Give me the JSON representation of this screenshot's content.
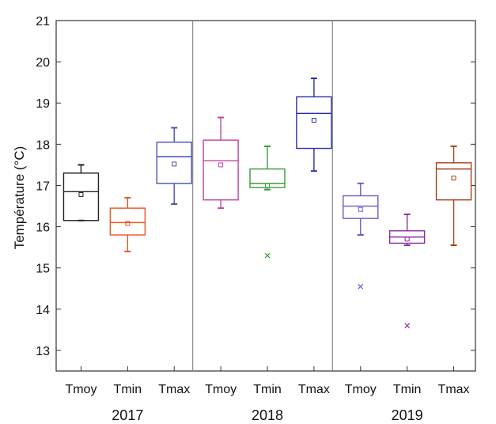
{
  "chart_data": {
    "type": "box",
    "ylabel": "Température (°C)",
    "xlabel": "",
    "ylim": [
      12.5,
      21
    ],
    "yticks": [
      13,
      14,
      15,
      16,
      17,
      18,
      19,
      20,
      21
    ],
    "grid": false,
    "legend": "none",
    "groups": [
      {
        "label": "2017",
        "boxes": [
          {
            "label": "Tmoy",
            "color": "#222222",
            "min": 16.15,
            "q1": 16.15,
            "median": 16.85,
            "q3": 17.3,
            "max": 17.5,
            "mean": 16.78,
            "outliers": []
          },
          {
            "label": "Tmin",
            "color": "#e8542a",
            "min": 15.4,
            "q1": 15.8,
            "median": 16.1,
            "q3": 16.45,
            "max": 16.7,
            "mean": 16.08,
            "outliers": []
          },
          {
            "label": "Tmax",
            "color": "#4a4fb0",
            "min": 16.55,
            "q1": 17.05,
            "median": 17.7,
            "q3": 18.05,
            "max": 18.4,
            "mean": 17.52,
            "outliers": []
          }
        ]
      },
      {
        "label": "2018",
        "boxes": [
          {
            "label": "Tmoy",
            "color": "#c0459a",
            "min": 16.45,
            "q1": 16.65,
            "median": 17.6,
            "q3": 18.1,
            "max": 18.65,
            "mean": 17.5,
            "outliers": []
          },
          {
            "label": "Tmin",
            "color": "#3a9a3a",
            "min": 16.9,
            "q1": 16.95,
            "median": 17.05,
            "q3": 17.4,
            "max": 17.95,
            "mean": 17.0,
            "outliers": [
              15.3
            ]
          },
          {
            "label": "Tmax",
            "color": "#2a2ea8",
            "min": 17.35,
            "q1": 17.9,
            "median": 18.75,
            "q3": 19.15,
            "max": 19.6,
            "mean": 18.58,
            "outliers": []
          }
        ]
      },
      {
        "label": "2019",
        "boxes": [
          {
            "label": "Tmoy",
            "color": "#6a5bc8",
            "min": 15.8,
            "q1": 16.2,
            "median": 16.5,
            "q3": 16.75,
            "max": 17.05,
            "mean": 16.42,
            "outliers": [
              14.55
            ]
          },
          {
            "label": "Tmin",
            "color": "#8a2ea0",
            "min": 15.55,
            "q1": 15.6,
            "median": 15.75,
            "q3": 15.9,
            "max": 16.3,
            "mean": 15.7,
            "outliers": [
              13.6
            ]
          },
          {
            "label": "Tmax",
            "color": "#a8401a",
            "min": 15.55,
            "q1": 16.65,
            "median": 17.4,
            "q3": 17.55,
            "max": 17.95,
            "mean": 17.18,
            "outliers": []
          }
        ]
      }
    ]
  }
}
